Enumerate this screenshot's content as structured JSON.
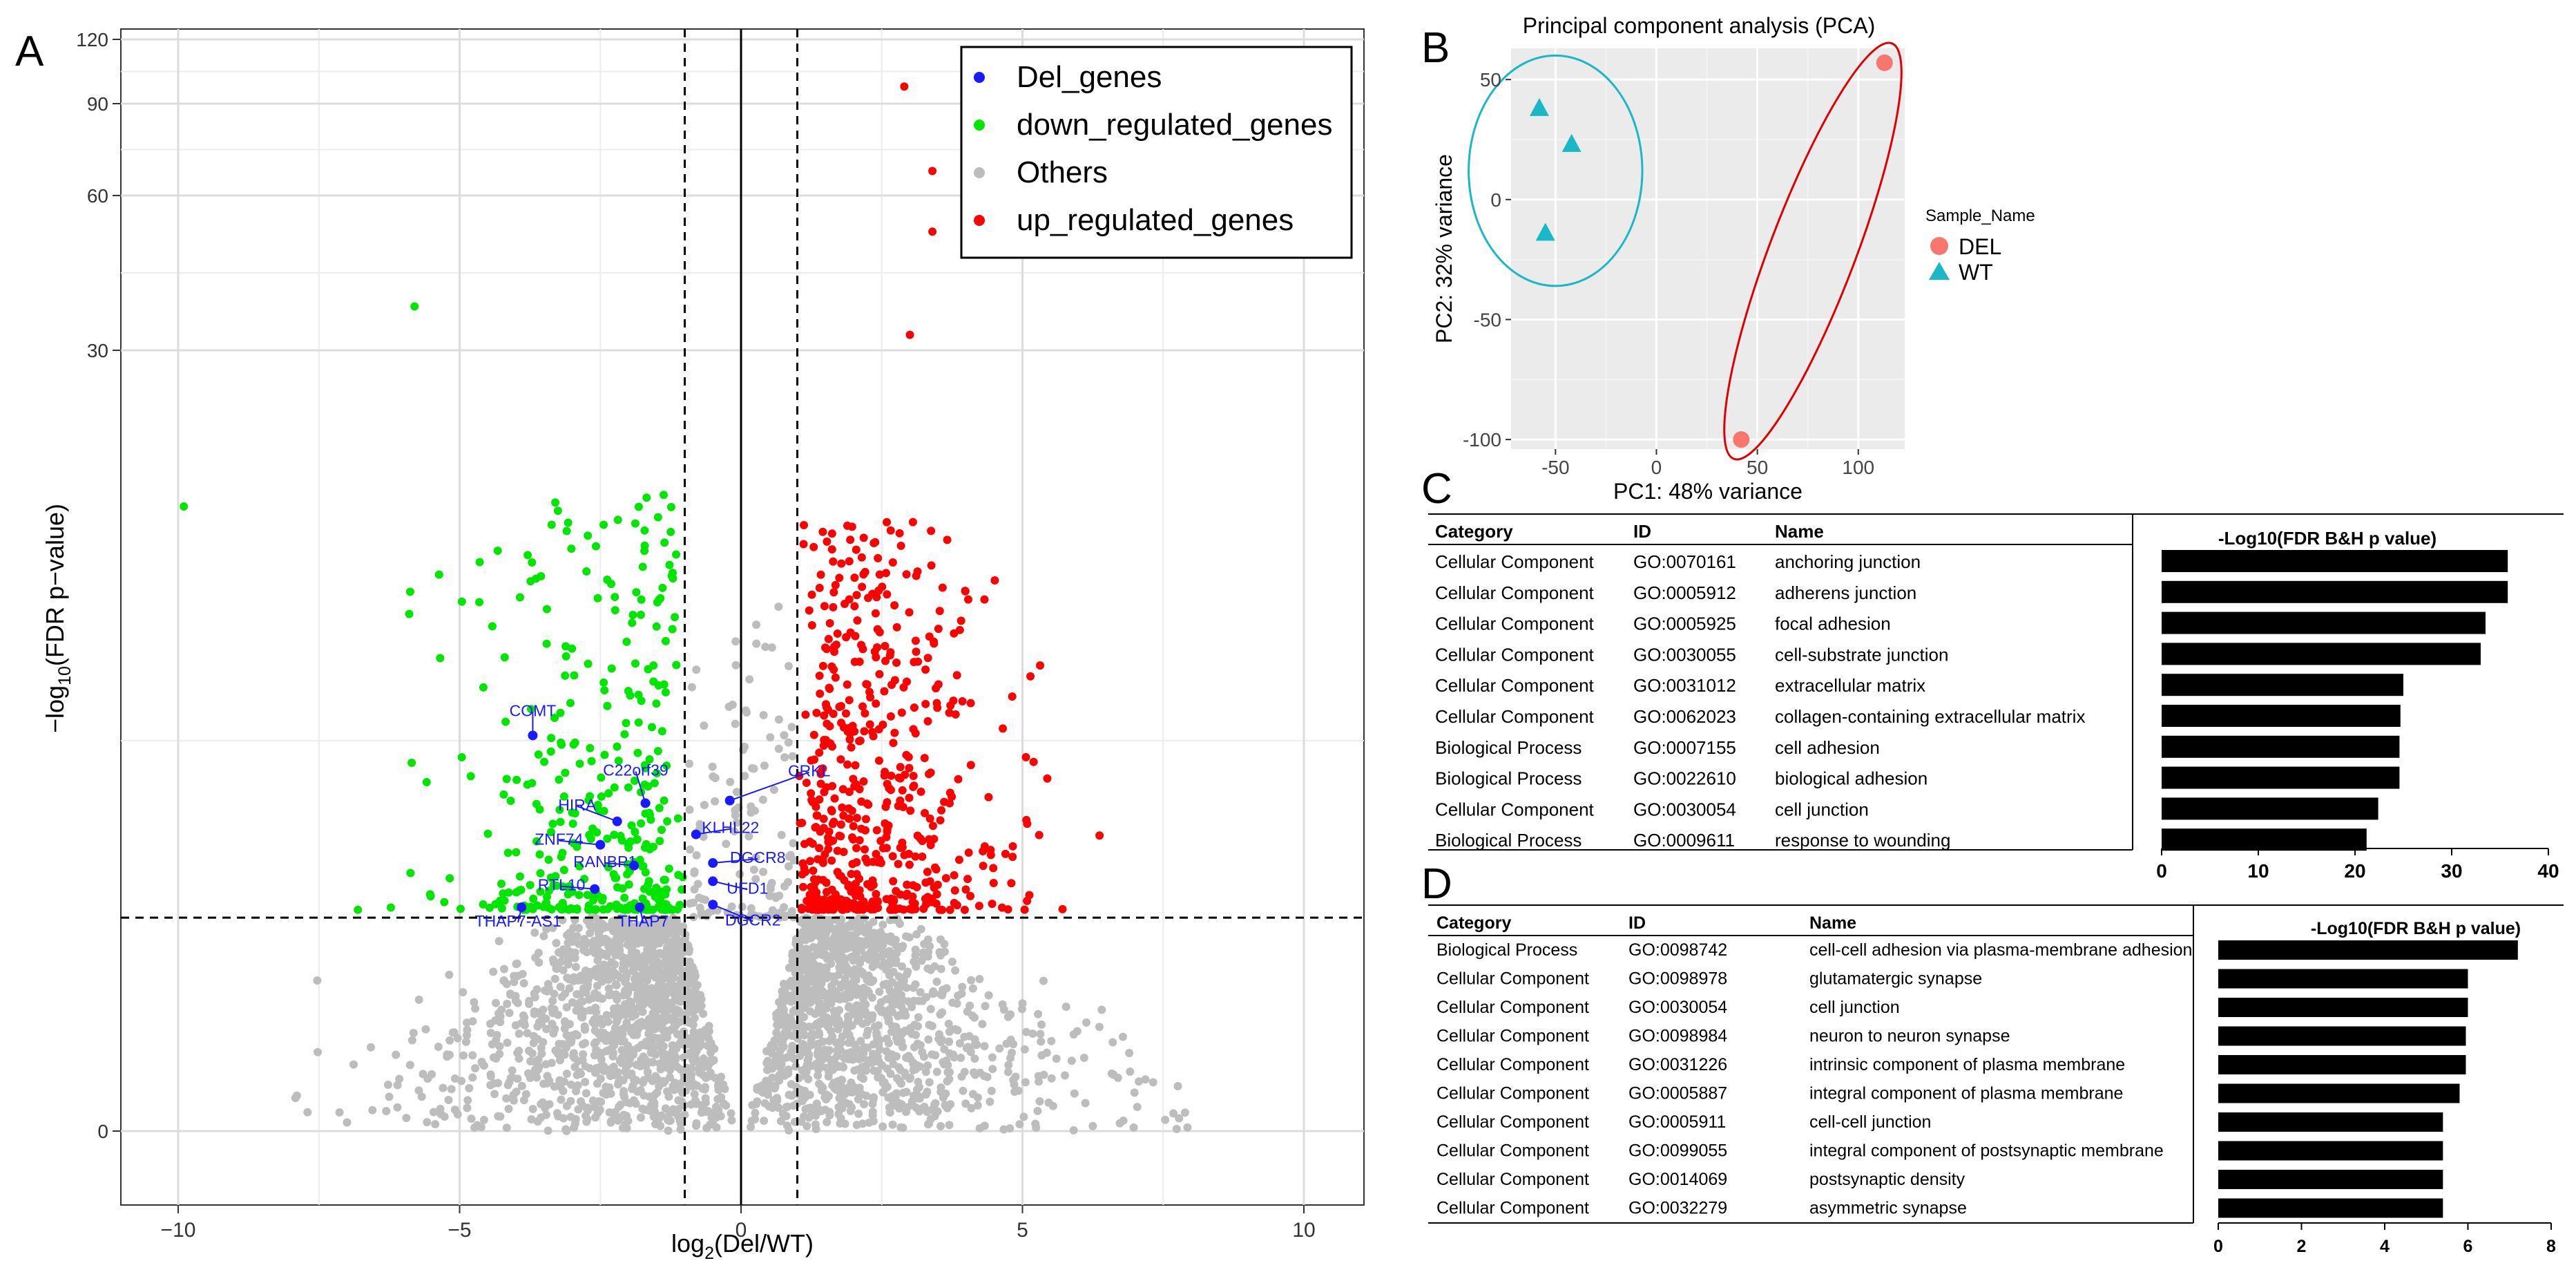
{
  "panel_letters": {
    "a": "A",
    "b": "B",
    "c": "C",
    "d": "D"
  },
  "colors": {
    "del": "#1a1aff",
    "down": "#00e600",
    "other": "#bdbdbd",
    "up": "#ff0000",
    "pca_del": "#f8766d",
    "pca_wt": "#1ab8c6",
    "panel_bg": "#ebebeb",
    "bar": "#000000"
  },
  "chart_data": [
    {
      "type": "scatter",
      "panel": "A",
      "title": "",
      "xlabel_main": "log",
      "xlabel_sub": "2",
      "xlabel_rest": "(Del/WT)",
      "ylabel_main": "−log",
      "ylabel_sub": "10",
      "ylabel_rest": "(FDR p−value)",
      "xlim": [
        -10.8,
        11.3
      ],
      "xticks": [
        -10,
        -5,
        0,
        5,
        10
      ],
      "xtick_labels": [
        "−10",
        "−5",
        "0",
        "5",
        "10"
      ],
      "yticks": [
        0,
        30,
        60,
        90,
        120
      ],
      "ytick_labels": [
        "0",
        "30",
        "60",
        "90",
        "120"
      ],
      "ylim_note": "y axis is non-linear (square-root-like): 0,30,60,90,120",
      "thresholds": {
        "x": [
          -1,
          1
        ],
        "y_note": "FDR cutoff line just below upper cluster"
      },
      "legend": [
        "Del_genes",
        "down_regulated_genes",
        "Others",
        "up_regulated_genes"
      ],
      "legend_position": "top-right",
      "del_genes": [
        {
          "label": "COMT",
          "x": -3.7,
          "y": 15.2
        },
        {
          "label": "HIRA",
          "x": -2.2,
          "y": 11.9
        },
        {
          "label": "C22orf39",
          "x": -1.7,
          "y": 12.6
        },
        {
          "label": "CRKL",
          "x": -0.2,
          "y": 12.7
        },
        {
          "label": "ZNF74",
          "x": -2.5,
          "y": 11.0
        },
        {
          "label": "KLHL22",
          "x": -0.8,
          "y": 11.4
        },
        {
          "label": "RANBP1",
          "x": -1.9,
          "y": 10.2
        },
        {
          "label": "DGCR8",
          "x": -0.5,
          "y": 10.3
        },
        {
          "label": "UFD1",
          "x": -0.5,
          "y": 9.6
        },
        {
          "label": "RTL10",
          "x": -2.6,
          "y": 9.3
        },
        {
          "label": "DGCR2",
          "x": -0.5,
          "y": 8.7
        },
        {
          "label": "THAP7-AS1",
          "x": -3.9,
          "y": 8.6
        },
        {
          "label": "THAP7",
          "x": -1.8,
          "y": 8.6
        }
      ],
      "highlight_points": [
        {
          "series": "up",
          "x": 2.9,
          "y": 98
        },
        {
          "series": "up",
          "x": 3.4,
          "y": 68
        },
        {
          "series": "up",
          "x": 3.4,
          "y": 53
        },
        {
          "series": "up",
          "x": 3.0,
          "y": 33
        },
        {
          "series": "down",
          "x": -5.8,
          "y": 38.5
        },
        {
          "series": "down",
          "x": -9.9,
          "y": 24
        }
      ]
    },
    {
      "type": "scatter",
      "panel": "B",
      "title": "Principal component analysis (PCA)",
      "xlabel": "PC1: 48% variance",
      "ylabel": "PC2: 32% variance",
      "xlim": [
        -72,
        123
      ],
      "ylim": [
        -104,
        63
      ],
      "xticks": [
        -50,
        0,
        50,
        100
      ],
      "xtick_labels": [
        "-50",
        "0",
        "50",
        "100"
      ],
      "yticks": [
        50,
        0,
        -50,
        -100
      ],
      "ytick_labels": [
        "50",
        "0",
        "-50",
        "-100"
      ],
      "legend_title": "Sample_Name",
      "legend_position": "right",
      "series": [
        {
          "name": "DEL",
          "points": [
            [
              113,
              57
            ],
            [
              42,
              -100
            ]
          ]
        },
        {
          "name": "WT",
          "points": [
            [
              -58,
              38
            ],
            [
              -42,
              23
            ],
            [
              -55,
              -14
            ]
          ]
        }
      ]
    },
    {
      "type": "bar",
      "panel": "C",
      "orientation": "horizontal",
      "title": "-Log10(FDR B&H p value)",
      "columns": [
        "Category",
        "ID",
        "Name"
      ],
      "rows": [
        {
          "category": "Cellular Component",
          "id": "GO:0070161",
          "name": "anchoring junction",
          "value": 35.8
        },
        {
          "category": "Cellular Component",
          "id": "GO:0005912",
          "name": "adherens junction",
          "value": 35.8
        },
        {
          "category": "Cellular Component",
          "id": "GO:0005925",
          "name": "focal adhesion",
          "value": 33.5
        },
        {
          "category": "Cellular Component",
          "id": "GO:0030055",
          "name": "cell-substrate junction",
          "value": 33.0
        },
        {
          "category": "Cellular Component",
          "id": "GO:0031012",
          "name": "extracellular matrix",
          "value": 25.0
        },
        {
          "category": "Cellular Component",
          "id": "GO:0062023",
          "name": "collagen-containing extracellular matrix",
          "value": 24.7
        },
        {
          "category": "Biological Process",
          "id": "GO:0007155",
          "name": "cell adhesion",
          "value": 24.6
        },
        {
          "category": "Biological Process",
          "id": "GO:0022610",
          "name": "biological adhesion",
          "value": 24.6
        },
        {
          "category": "Cellular Component",
          "id": "GO:0030054",
          "name": "cell junction",
          "value": 22.4
        },
        {
          "category": "Biological Process",
          "id": "GO:0009611",
          "name": "response to wounding",
          "value": 21.2
        }
      ],
      "xlim": [
        0,
        40
      ],
      "xticks": [
        0,
        10,
        20,
        30,
        40
      ],
      "xtick_labels": [
        "0",
        "10",
        "20",
        "30",
        "40"
      ]
    },
    {
      "type": "bar",
      "panel": "D",
      "orientation": "horizontal",
      "title": "-Log10(FDR B&H p value)",
      "columns": [
        "Category",
        "ID",
        "Name"
      ],
      "rows": [
        {
          "category": "Biological Process",
          "id": "GO:0098742",
          "name": "cell-cell adhesion via plasma-membrane adhesion",
          "value": 7.2
        },
        {
          "category": "Cellular Component",
          "id": "GO:0098978",
          "name": "glutamatergic synapse",
          "value": 6.0
        },
        {
          "category": "Cellular Component",
          "id": "GO:0030054",
          "name": "cell junction",
          "value": 6.0
        },
        {
          "category": "Cellular Component",
          "id": "GO:0098984",
          "name": "neuron to neuron synapse",
          "value": 5.95
        },
        {
          "category": "Cellular Component",
          "id": "GO:0031226",
          "name": "intrinsic component of plasma membrane",
          "value": 5.95
        },
        {
          "category": "Cellular Component",
          "id": "GO:0005887",
          "name": "integral component of plasma membrane",
          "value": 5.8
        },
        {
          "category": "Cellular Component",
          "id": "GO:0005911",
          "name": "cell-cell junction",
          "value": 5.4
        },
        {
          "category": "Cellular Component",
          "id": "GO:0099055",
          "name": "integral component of postsynaptic membrane",
          "value": 5.4
        },
        {
          "category": "Cellular Component",
          "id": "GO:0014069",
          "name": "postsynaptic density",
          "value": 5.4
        },
        {
          "category": "Cellular Component",
          "id": "GO:0032279",
          "name": "asymmetric synapse",
          "value": 5.4
        }
      ],
      "xlim": [
        0,
        8
      ],
      "xticks": [
        0,
        2,
        4,
        6,
        8
      ],
      "xtick_labels": [
        "0",
        "2",
        "4",
        "6",
        "8"
      ]
    }
  ]
}
